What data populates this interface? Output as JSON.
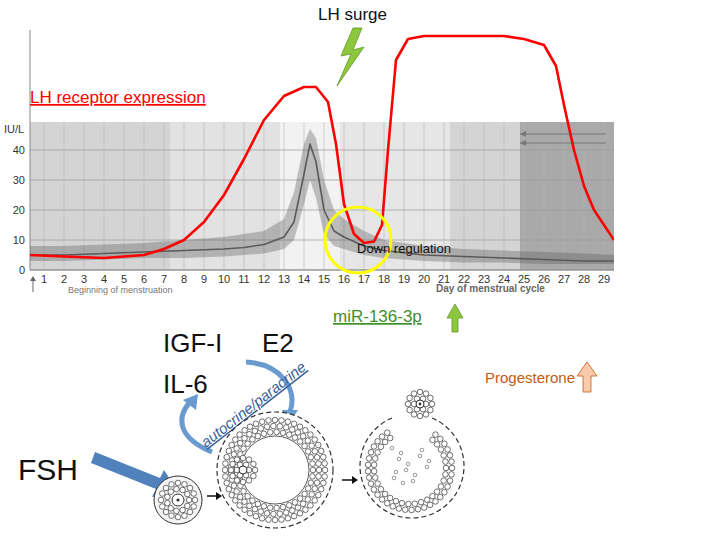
{
  "chart_data": {
    "type": "line",
    "y_label": "IU/L",
    "x_label": "Day of menstrual cycle",
    "x_note": "Beginning of menstruation",
    "xlim": [
      0.3,
      29.5
    ],
    "xticks": [
      1,
      2,
      3,
      4,
      5,
      6,
      7,
      8,
      9,
      10,
      11,
      12,
      13,
      14,
      15,
      16,
      17,
      18,
      19,
      20,
      21,
      22,
      23,
      24,
      25,
      26,
      27,
      28,
      29
    ],
    "ylim": [
      0,
      80
    ],
    "yticks": [
      0,
      10,
      20,
      30,
      40
    ],
    "grid": true,
    "series": [
      {
        "color": "#5a5a5a",
        "x": [
          0.3,
          2,
          4,
          6,
          8,
          10,
          11,
          12,
          13,
          13.5,
          14,
          14.3,
          14.6,
          15,
          15.5,
          16,
          17,
          18,
          20,
          22,
          24,
          26,
          28,
          29.5
        ],
        "values": [
          5,
          5,
          5.5,
          6,
          6.5,
          7,
          7.5,
          8.5,
          11,
          16,
          32,
          42,
          36,
          20,
          13,
          11,
          8,
          6.5,
          5,
          4.5,
          4,
          3.5,
          3,
          3
        ],
        "band_low": [
          3,
          3,
          3.5,
          4,
          4,
          4.5,
          5,
          5.5,
          7,
          10,
          22,
          30,
          24,
          12,
          8,
          7,
          5,
          4,
          3,
          2.5,
          2.5,
          2,
          2,
          2
        ],
        "band_high": [
          8,
          8,
          8.5,
          9,
          10,
          11,
          12,
          13,
          17,
          26,
          42,
          47,
          44,
          30,
          20,
          17,
          13,
          10,
          8,
          7,
          6.5,
          6,
          5.5,
          5
        ]
      },
      {
        "name": "LH receptor expression",
        "color": "#ff0000",
        "x": [
          0.3,
          2,
          4,
          6,
          7,
          8,
          9,
          10,
          11,
          12,
          13,
          14,
          14.6,
          15.2,
          15.6,
          16,
          16.5,
          17,
          17.5,
          17.9,
          18.2,
          18.6,
          19.2,
          20,
          21,
          22,
          23,
          24,
          25,
          26,
          26.6,
          27,
          27.5,
          28,
          28.5,
          29,
          29.5
        ],
        "values": [
          5,
          4.5,
          4,
          5,
          7,
          10,
          16,
          25,
          37,
          50,
          58,
          61,
          61,
          56,
          42,
          22,
          12,
          9,
          9.5,
          15,
          40,
          70,
          77,
          78,
          78,
          78,
          78,
          78,
          77,
          75,
          68,
          55,
          40,
          28,
          20,
          15,
          10
        ]
      }
    ]
  },
  "annotations": {
    "lh_surge": "LH surge",
    "down_regulation": "Down regulation",
    "mirna": "miR-136-3p",
    "progesterone": "Progesterone"
  },
  "diagram": {
    "fsh": "FSH",
    "igf": "IGF-I",
    "e2": "E2",
    "il6": "IL-6",
    "loop": "autocrine/paracrine"
  }
}
